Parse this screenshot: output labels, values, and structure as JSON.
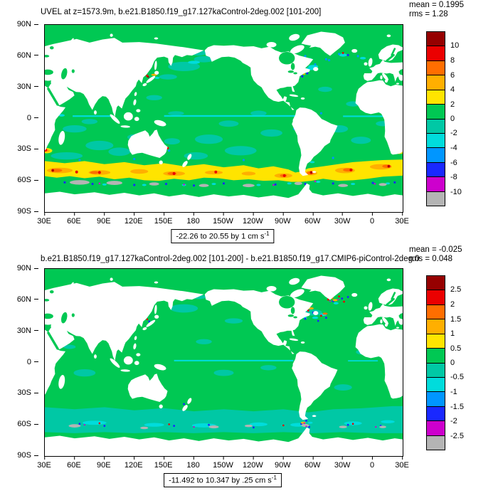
{
  "colorbar_colors": [
    "#960000",
    "#eb0000",
    "#ff6e00",
    "#ffaf00",
    "#ffe400",
    "#00c853",
    "#00c8a5",
    "#00dcdc",
    "#0096ff",
    "#1928ff",
    "#cd00cd",
    "#b4b4b4"
  ],
  "axes": {
    "lat_ticks": [
      "90N",
      "60N",
      "30N",
      "0",
      "30S",
      "60S",
      "90S"
    ],
    "lon_ticks": [
      "30E",
      "60E",
      "90E",
      "120E",
      "150E",
      "180",
      "150W",
      "120W",
      "90W",
      "60W",
      "30W",
      "0",
      "30E"
    ]
  },
  "panels": [
    {
      "title": "UVEL at z=1573.9m, b.e21.B1850.f19_g17.127kaControl-2deg.002 [101-200]",
      "mean": "mean = 0.1995",
      "rms": "rms = 1.28",
      "caption_text": "-22.26 to 20.55 by 1 cm s",
      "caption_sup": "-1",
      "colorbar_labels": [
        "10",
        "8",
        "6",
        "4",
        "2",
        "0",
        "-2",
        "-4",
        "-6",
        "-8",
        "-10"
      ]
    },
    {
      "title": "b.e21.B1850.f19_g17.127kaControl-2deg.002 [101-200] - b.e21.B1850.f19_g17.CMIP6-piControl-2deg.0",
      "mean": "mean = -0.025",
      "rms": "rms = 0.048",
      "caption_text": "-11.492 to 10.347 by .25 cm s",
      "caption_sup": "-1",
      "colorbar_labels": [
        "2.5",
        "2",
        "1.5",
        "1",
        "0.5",
        "0",
        "-0.5",
        "-1",
        "-1.5",
        "-2",
        "-2.5"
      ]
    }
  ],
  "chart_data": [
    {
      "type": "heatmap",
      "subtype": "lat-lon filled contour world map",
      "title": "UVEL at z=1573.9m, b.e21.B1850.f19_g17.127kaControl-2deg.002 [101-200]",
      "variable": "UVEL",
      "depth_m": 1573.9,
      "units": "cm s-1",
      "mean": 0.1995,
      "rms": 1.28,
      "data_min": -22.26,
      "data_max": 20.55,
      "contour_interval": 1,
      "colorbar_levels": [
        10,
        8,
        6,
        4,
        2,
        0,
        -2,
        -4,
        -6,
        -8,
        -10
      ],
      "lat_ticks": [
        "90N",
        "60N",
        "30N",
        "0",
        "30S",
        "60S",
        "90S"
      ],
      "lon_ticks": [
        "30E",
        "60E",
        "90E",
        "120E",
        "150E",
        "180",
        "150W",
        "120W",
        "90W",
        "60W",
        "30W",
        "0",
        "30E"
      ],
      "legend_position": "right",
      "notes": "Ocean zonal velocity at 1573.9 m; green/teal near zero over most oceans; strong eastward yellow-orange-red Antarctic Circumpolar Current band near 45S-60S with gray (<-10) westward patches south of it; land masked white"
    },
    {
      "type": "heatmap",
      "subtype": "lat-lon filled contour world map (difference)",
      "title": "b.e21.B1850.f19_g17.127kaControl-2deg.002 [101-200] - b.e21.B1850.f19_g17.CMIP6-piControl-2deg.0",
      "variable": "UVEL difference",
      "units": "cm s-1",
      "mean": -0.025,
      "rms": 0.048,
      "data_min": -11.492,
      "data_max": 10.347,
      "contour_interval": 0.25,
      "colorbar_levels": [
        2.5,
        2,
        1.5,
        1,
        0.5,
        0,
        -0.5,
        -1,
        -1.5,
        -2,
        -2.5
      ],
      "lat_ticks": [
        "90N",
        "60N",
        "30N",
        "0",
        "30S",
        "60S",
        "90S"
      ],
      "lon_ticks": [
        "30E",
        "60E",
        "90E",
        "120E",
        "150E",
        "180",
        "150W",
        "120W",
        "90W",
        "60W",
        "30W",
        "0",
        "30E"
      ],
      "legend_position": "right",
      "notes": "Difference near zero (green) nearly everywhere; localized anomalies in subpolar North Atlantic, western boundary currents and Southern Ocean"
    }
  ]
}
